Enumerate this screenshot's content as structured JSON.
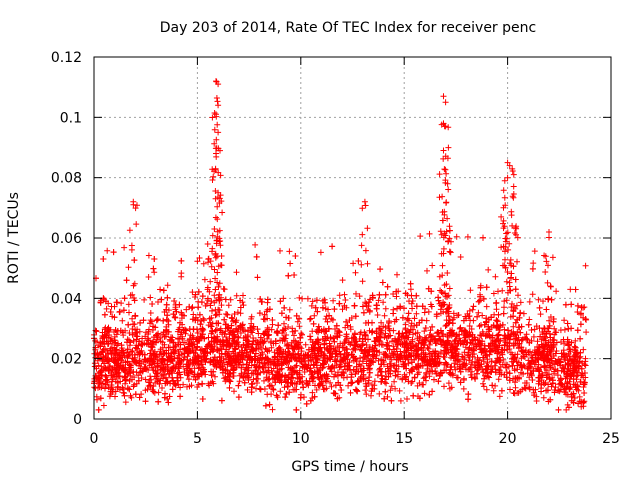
{
  "chart_data": {
    "type": "scatter",
    "title": "Day 203 of 2014, Rate Of TEC Index for receiver penc",
    "xlabel": "GPS time / hours",
    "ylabel": "ROTI / TECUs",
    "xlim": [
      0,
      25
    ],
    "ylim": [
      0,
      0.12
    ],
    "x_ticks": [
      0,
      5,
      10,
      15,
      20,
      25
    ],
    "x_tick_labels": [
      "0",
      "5",
      "10",
      "15",
      "20",
      "25"
    ],
    "y_ticks": [
      0,
      0.02,
      0.04,
      0.06,
      0.08,
      0.1,
      0.12
    ],
    "y_tick_labels": [
      "0",
      "0.02",
      "0.04",
      "0.06",
      "0.08",
      "0.1",
      "0.12"
    ],
    "grid": true,
    "marker": "+",
    "color": "#ff0000",
    "series": [
      {
        "name": "ROTI",
        "x_range": [
          0,
          23.8
        ],
        "typical_band": [
          0.005,
          0.035
        ],
        "baseline_profile": [
          {
            "x": 0,
            "y": 0.018
          },
          {
            "x": 3,
            "y": 0.019
          },
          {
            "x": 6,
            "y": 0.022
          },
          {
            "x": 9,
            "y": 0.019
          },
          {
            "x": 12,
            "y": 0.02
          },
          {
            "x": 15,
            "y": 0.021
          },
          {
            "x": 17,
            "y": 0.023
          },
          {
            "x": 20,
            "y": 0.022
          },
          {
            "x": 23.8,
            "y": 0.015
          }
        ],
        "peaks": [
          {
            "x": 1.9,
            "y": 0.072
          },
          {
            "x": 5.9,
            "y": 0.112
          },
          {
            "x": 6.0,
            "y": 0.111
          },
          {
            "x": 6.0,
            "y": 0.104
          },
          {
            "x": 5.9,
            "y": 0.101
          },
          {
            "x": 6.0,
            "y": 0.095
          },
          {
            "x": 5.9,
            "y": 0.088
          },
          {
            "x": 6.0,
            "y": 0.075
          },
          {
            "x": 5.5,
            "y": 0.058
          },
          {
            "x": 13.1,
            "y": 0.072
          },
          {
            "x": 16.9,
            "y": 0.107
          },
          {
            "x": 17.0,
            "y": 0.105
          },
          {
            "x": 16.9,
            "y": 0.098
          },
          {
            "x": 17.0,
            "y": 0.097
          },
          {
            "x": 16.9,
            "y": 0.089
          },
          {
            "x": 17.1,
            "y": 0.078
          },
          {
            "x": 20.0,
            "y": 0.085
          },
          {
            "x": 20.1,
            "y": 0.084
          },
          {
            "x": 20.0,
            "y": 0.08
          },
          {
            "x": 20.3,
            "y": 0.081
          },
          {
            "x": 19.8,
            "y": 0.07
          },
          {
            "x": 22.0,
            "y": 0.062
          }
        ]
      }
    ]
  }
}
